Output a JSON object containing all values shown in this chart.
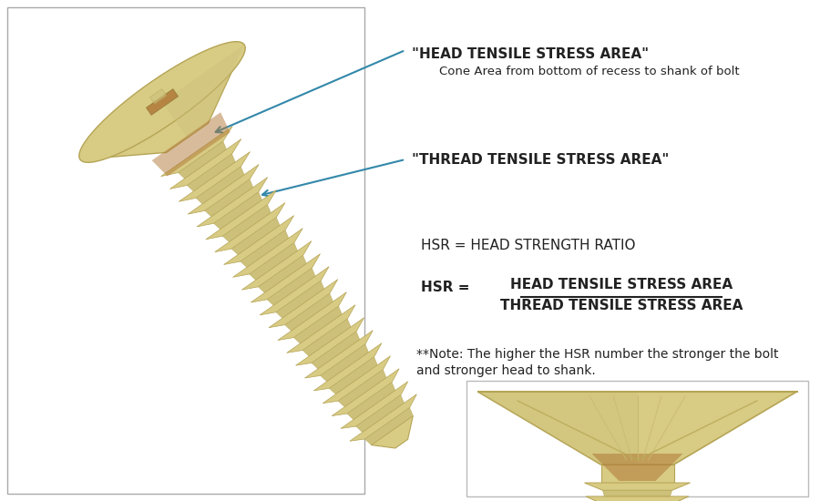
{
  "bg_color": "#ffffff",
  "arrow_color": "#3388aa",
  "text_color": "#222222",
  "bolt_color": "#d8cb84",
  "bolt_dark": "#b5a455",
  "bolt_mid": "#ccc07a",
  "bolt_shadow": "#8b7830",
  "recess_color": "#b07838",
  "label1_bold": "\"HEAD TENSILE STRESS AREA\"",
  "label1_sub": "Cone Area from bottom of recess to shank of bolt",
  "label2_bold": "\"THREAD TENSILE STRESS AREA\"",
  "hsr_def": "HSR = HEAD STRENGTH RATIO",
  "hsr_eq_left": "HSR =",
  "hsr_numerator": "HEAD TENSILE STRESS AREA",
  "hsr_denominator": "THREAD TENSILE STRESS AREA",
  "note_line1": "**Note: The higher the HSR number the stronger the bolt",
  "note_line2": "and stronger head to shank.",
  "fig_width": 9.0,
  "fig_height": 5.5,
  "dpi": 100
}
